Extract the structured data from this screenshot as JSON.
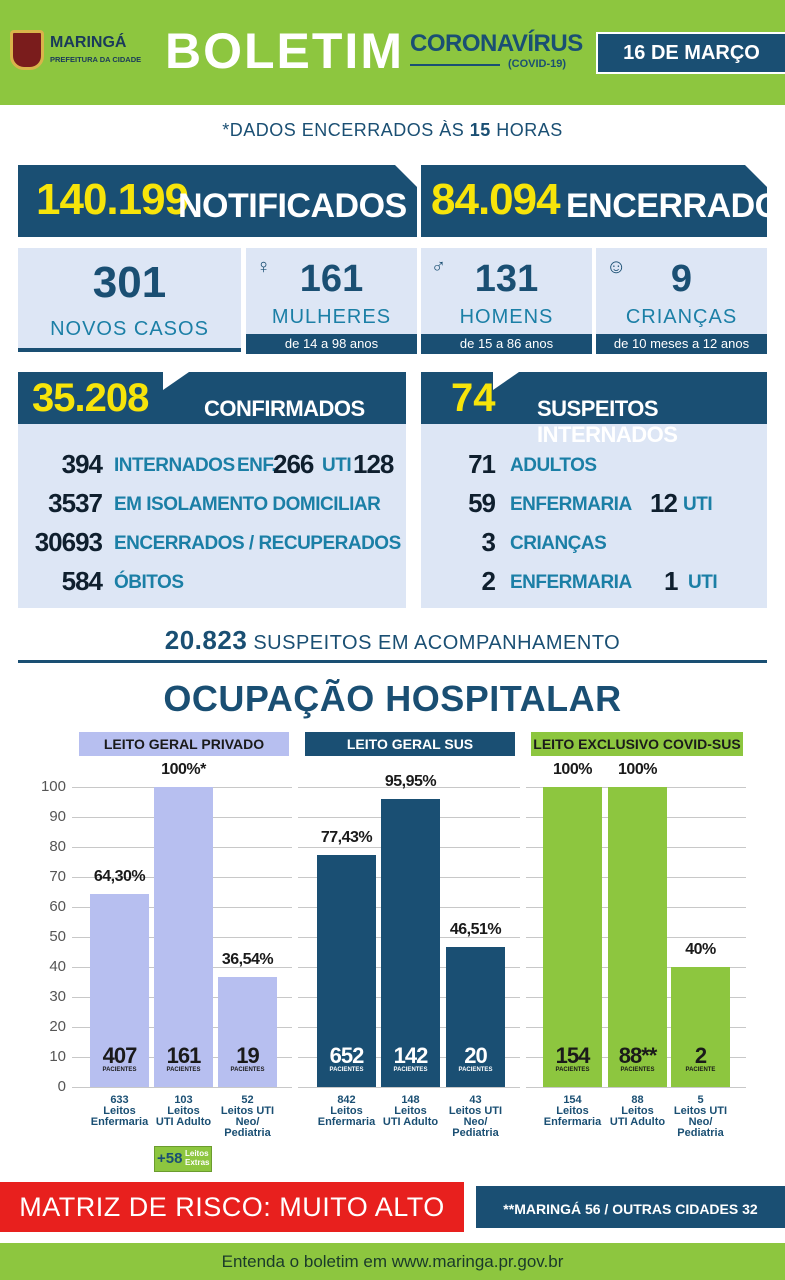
{
  "header": {
    "city": "MARINGÁ",
    "city_sub": "PREFEITURA DA CIDADE",
    "title": "BOLETIM",
    "subtitle": "CORONAVÍRUS",
    "subtitle_tag": "(COVID-19)",
    "date": "16 DE MARÇO"
  },
  "cutoff": {
    "prefix": "*DADOS ENCERRADOS ÀS ",
    "hour": "15",
    "suffix": " HORAS"
  },
  "notificados": {
    "value": "140.199",
    "label": "NOTIFICADOS"
  },
  "encerrados": {
    "value": "84.094",
    "label": "ENCERRADOS"
  },
  "novos": {
    "value": "301",
    "label": "NOVOS CASOS"
  },
  "mulheres": {
    "value": "161",
    "label": "MULHERES",
    "age": "de 14 a 98 anos"
  },
  "homens": {
    "value": "131",
    "label": "HOMENS",
    "age": "de 15 a 86 anos"
  },
  "criancas": {
    "value": "9",
    "label": "CRIANÇAS",
    "age": "de 10 meses a 12 anos"
  },
  "confirmados": {
    "value": "35.208",
    "label": "CONFIRMADOS",
    "rows": [
      {
        "n": "394",
        "label": "INTERNADOS",
        "enf_label": "ENF.",
        "enf": "266",
        "uti_label": "UTI",
        "uti": "128"
      },
      {
        "n": "3537",
        "label": "EM ISOLAMENTO DOMICILIAR"
      },
      {
        "n": "30693",
        "label": "ENCERRADOS / RECUPERADOS"
      },
      {
        "n": "584",
        "label": "ÓBITOS"
      }
    ]
  },
  "suspeitos": {
    "value": "74",
    "label": "SUSPEITOS INTERNADOS",
    "rows": [
      {
        "n": "71",
        "label": "ADULTOS"
      },
      {
        "n": "59",
        "label": "ENFERMARIA",
        "n2": "12",
        "label2": "UTI"
      },
      {
        "n": "3",
        "label": "CRIANÇAS"
      },
      {
        "n": "2",
        "label": "ENFERMARIA",
        "n2": "1",
        "label2": "UTI"
      }
    ]
  },
  "acompanhamento": {
    "value": "20.823",
    "label": "SUSPEITOS EM ACOMPANHAMENTO"
  },
  "hosp_title": "OCUPAÇÃO HOSPITALAR",
  "pacientes_label": "PACIENTES",
  "paciente_label": "PACIENTE",
  "chart_data": [
    {
      "type": "bar",
      "title": "LEITO GERAL PRIVADO",
      "ylim": [
        0,
        100
      ],
      "yticks": [
        "0",
        "10",
        "20",
        "30",
        "40",
        "50",
        "60",
        "70",
        "80",
        "90",
        "100"
      ],
      "color": "#b7bff0",
      "bars": [
        {
          "value": 64.3,
          "label": "64,30%",
          "patients": "407",
          "plabel": "PACIENTES",
          "caption": [
            "633",
            "Leitos",
            "Enfermaria"
          ]
        },
        {
          "value": 100,
          "label": "100%*",
          "patients": "161",
          "plabel": "PACIENTES",
          "caption": [
            "103",
            "Leitos",
            "UTI Adulto"
          ]
        },
        {
          "value": 36.54,
          "label": "36,54%",
          "patients": "19",
          "plabel": "PACIENTES",
          "caption": [
            "52",
            "Leitos UTI",
            "Neo/",
            "Pediatria"
          ]
        }
      ],
      "extra": {
        "value": "+58",
        "label": [
          "Leitos",
          "Extras"
        ]
      }
    },
    {
      "type": "bar",
      "title": "LEITO GERAL SUS",
      "ylim": [
        0,
        100
      ],
      "color": "#1a4f73",
      "bars": [
        {
          "value": 77.43,
          "label": "77,43%",
          "patients": "652",
          "plabel": "PACIENTES",
          "caption": [
            "842",
            "Leitos",
            "Enfermaria"
          ]
        },
        {
          "value": 95.95,
          "label": "95,95%",
          "patients": "142",
          "plabel": "PACIENTES",
          "caption": [
            "148",
            "Leitos",
            "UTI Adulto"
          ]
        },
        {
          "value": 46.51,
          "label": "46,51%",
          "patients": "20",
          "plabel": "PACIENTES",
          "caption": [
            "43",
            "Leitos UTI",
            "Neo/",
            "Pediatria"
          ]
        }
      ]
    },
    {
      "type": "bar",
      "title": "LEITO EXCLUSIVO COVID-SUS",
      "ylim": [
        0,
        100
      ],
      "color": "#8dc63f",
      "bars": [
        {
          "value": 100,
          "label": "100%",
          "patients": "154",
          "plabel": "PACIENTES",
          "caption": [
            "154",
            "Leitos",
            "Enfermaria"
          ]
        },
        {
          "value": 100,
          "label": "100%",
          "patients": "88**",
          "plabel": "PACIENTES",
          "caption": [
            "88",
            "Leitos",
            "UTI Adulto"
          ]
        },
        {
          "value": 40,
          "label": "40%",
          "patients": "2",
          "plabel": "PACIENTE",
          "caption": [
            "5",
            "Leitos UTI",
            "Neo/",
            "Pediatria"
          ]
        }
      ]
    }
  ],
  "matriz": "MATRIZ DE RISCO: MUITO ALTO",
  "note": "**MARINGÁ 56 / OUTRAS CIDADES 32",
  "footer": "Entenda o boletim em www.maringa.pr.gov.br"
}
